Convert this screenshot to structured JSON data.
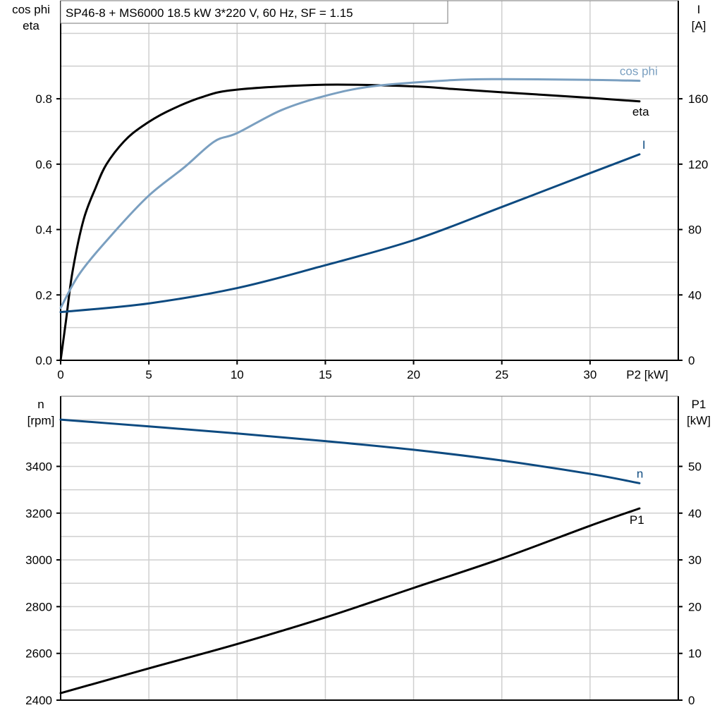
{
  "chart_data": [
    {
      "type": "line",
      "title": "SP46-8 + MS6000   18.5 kW   3*220 V, 60 Hz, SF = 1.15",
      "xlabel": "P2 [kW]",
      "ylabel_left": [
        "cos phi",
        "eta"
      ],
      "ylabel_right": [
        "I",
        "[A]"
      ],
      "xlim": [
        0,
        35
      ],
      "ylim_left": [
        0,
        1.1
      ],
      "ylim_right": [
        0,
        220
      ],
      "x_ticks": [
        "0",
        "5",
        "10",
        "15",
        "20",
        "25",
        "30"
      ],
      "y_ticks_left": [
        "0.0",
        "0.2",
        "0.4",
        "0.6",
        "0.8"
      ],
      "y_ticks_right": [
        "0",
        "40",
        "80",
        "120",
        "160"
      ],
      "grid": true,
      "series": [
        {
          "name": "eta",
          "axis": "left",
          "color": "#000000",
          "points": [
            [
              0,
              0
            ],
            [
              0.3,
              0.12
            ],
            [
              0.67,
              0.27
            ],
            [
              1.3,
              0.43
            ],
            [
              2,
              0.53
            ],
            [
              2.6,
              0.6
            ],
            [
              3.6,
              0.67
            ],
            [
              4.6,
              0.715
            ],
            [
              6,
              0.76
            ],
            [
              8,
              0.805
            ],
            [
              10,
              0.828
            ],
            [
              15,
              0.843
            ],
            [
              20,
              0.838
            ],
            [
              22.2,
              0.83
            ],
            [
              25,
              0.82
            ],
            [
              30,
              0.803
            ],
            [
              32.8,
              0.792
            ]
          ]
        },
        {
          "name": "cos phi",
          "axis": "left",
          "color": "#7a9fc0",
          "points": [
            [
              0,
              0.16
            ],
            [
              1.1,
              0.267
            ],
            [
              3,
              0.39
            ],
            [
              5,
              0.504
            ],
            [
              7,
              0.59
            ],
            [
              8.7,
              0.669
            ],
            [
              10,
              0.695
            ],
            [
              12.5,
              0.765
            ],
            [
              15,
              0.809
            ],
            [
              17.8,
              0.839
            ],
            [
              22.2,
              0.857
            ],
            [
              25,
              0.86
            ],
            [
              30,
              0.858
            ],
            [
              32.8,
              0.855
            ]
          ]
        },
        {
          "name": "I",
          "axis": "right",
          "color": "#0d4a80",
          "points": [
            [
              0,
              29.5
            ],
            [
              5,
              34.8
            ],
            [
              10,
              44.2
            ],
            [
              14.6,
              57
            ],
            [
              20,
              73.5
            ],
            [
              25,
              93.8
            ],
            [
              30,
              114.5
            ],
            [
              32.8,
              126
            ]
          ]
        }
      ]
    },
    {
      "type": "line",
      "xlim": [
        0,
        35
      ],
      "ylabel_left": [
        "n",
        "[rpm]"
      ],
      "ylabel_right": [
        "P1",
        "[kW]"
      ],
      "ylim_left": [
        2400,
        3700
      ],
      "ylim_right": [
        0,
        65
      ],
      "y_ticks_left": [
        "2400",
        "2600",
        "2800",
        "3000",
        "3200",
        "3400"
      ],
      "y_ticks_right": [
        "0",
        "10",
        "20",
        "30",
        "40",
        "50"
      ],
      "grid": true,
      "series": [
        {
          "name": "n",
          "axis": "left",
          "color": "#0d4a80",
          "points": [
            [
              0,
              3600
            ],
            [
              5,
              3571
            ],
            [
              10,
              3541
            ],
            [
              15,
              3508
            ],
            [
              20,
              3471
            ],
            [
              25,
              3425
            ],
            [
              30,
              3368
            ],
            [
              32.8,
              3328
            ]
          ]
        },
        {
          "name": "P1",
          "axis": "right",
          "color": "#000000",
          "points": [
            [
              0,
              1.5
            ],
            [
              5,
              6.8
            ],
            [
              10,
              12
            ],
            [
              15,
              17.7
            ],
            [
              20,
              24
            ],
            [
              25,
              30.3
            ],
            [
              30,
              37.3
            ],
            [
              32.8,
              41
            ]
          ]
        }
      ]
    }
  ]
}
